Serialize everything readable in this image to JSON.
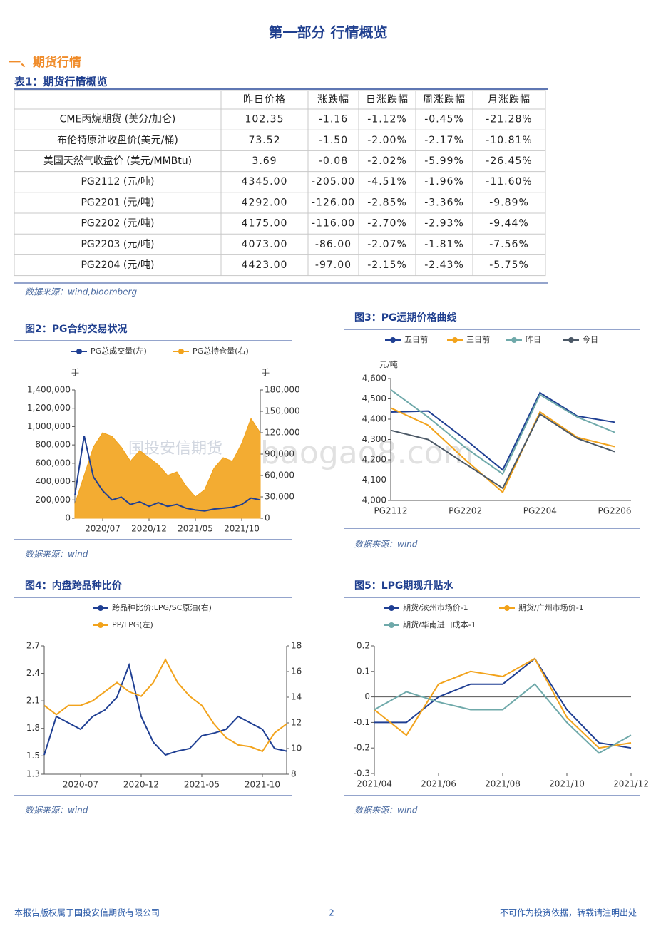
{
  "header": {
    "title": "第一部分 行情概览"
  },
  "section": "一、期货行情",
  "table": {
    "caption": "表1：期货行情概览",
    "columns": [
      "昨日价格",
      "涨跌幅",
      "日涨跌幅",
      "周涨跌幅",
      "月涨跌幅"
    ],
    "rows": [
      [
        "CME丙烷期货 (美分/加仑)",
        "102.35",
        "-1.16",
        "-1.12%",
        "-0.45%",
        "-21.28%"
      ],
      [
        "布伦特原油收盘价(美元/桶)",
        "73.52",
        "-1.50",
        "-2.00%",
        "-2.17%",
        "-10.81%"
      ],
      [
        "美国天然气收盘价 (美元/MMBtu)",
        "3.69",
        "-0.08",
        "-2.02%",
        "-5.99%",
        "-26.45%"
      ],
      [
        "PG2112 (元/吨)",
        "4345.00",
        "-205.00",
        "-4.51%",
        "-1.96%",
        "-11.60%"
      ],
      [
        "PG2201 (元/吨)",
        "4292.00",
        "-126.00",
        "-2.85%",
        "-3.36%",
        "-9.89%"
      ],
      [
        "PG2202 (元/吨)",
        "4175.00",
        "-116.00",
        "-2.70%",
        "-2.93%",
        "-9.44%"
      ],
      [
        "PG2203 (元/吨)",
        "4073.00",
        "-86.00",
        "-2.07%",
        "-1.81%",
        "-7.56%"
      ],
      [
        "PG2204 (元/吨)",
        "4423.00",
        "-97.00",
        "-2.15%",
        "-2.43%",
        "-5.75%"
      ]
    ],
    "source": "数据来源：wind,bloomberg"
  },
  "chart_data": [
    {
      "type": "line",
      "title": "图2：PG合约交易状况",
      "source": "数据来源：wind",
      "y_unit": "手",
      "y2_unit": "手",
      "x": [
        "2020/04",
        "2020/05",
        "2020/06",
        "2020/07",
        "2020/08",
        "2020/09",
        "2020/10",
        "2020/11",
        "2020/12",
        "2021/01",
        "2021/02",
        "2021/03",
        "2021/04",
        "2021/05",
        "2021/06",
        "2021/07",
        "2021/08",
        "2021/09",
        "2021/10",
        "2021/11",
        "2021/12"
      ],
      "xticks": [
        "2020/07",
        "2020/12",
        "2021/05",
        "2021/10"
      ],
      "ylim": [
        0,
        1400000
      ],
      "yticks": [
        0,
        {
          "value": 200000,
          "label": "200,000"
        },
        {
          "value": 400000,
          "label": "400,000"
        },
        {
          "value": 600000,
          "label": "600,000"
        },
        {
          "value": 800000,
          "label": "800,000"
        },
        {
          "value": 1000000,
          "label": "1,000,000"
        },
        {
          "value": 1200000,
          "label": "1,200,000"
        },
        {
          "value": 1400000,
          "label": "1,400,000"
        }
      ],
      "y2lim": [
        0,
        180000
      ],
      "y2ticks": [
        0,
        {
          "value": 30000,
          "label": "30,000"
        },
        {
          "value": 60000,
          "label": "60,000"
        },
        {
          "value": 90000,
          "label": "90,000"
        },
        {
          "value": 120000,
          "label": "120,000"
        },
        {
          "value": 150000,
          "label": "150,000"
        },
        {
          "value": 180000,
          "label": "180,000"
        }
      ],
      "series": [
        {
          "name": "PG总持仓量(右)",
          "color": "#f2a31c",
          "axis": "y2",
          "area": true,
          "values": [
            20000,
            60000,
            100000,
            120000,
            115000,
            100000,
            80000,
            95000,
            85000,
            75000,
            60000,
            65000,
            45000,
            30000,
            40000,
            70000,
            85000,
            80000,
            105000,
            140000,
            120000
          ]
        },
        {
          "name": "PG总成交量(左)",
          "color": "#1f3f93",
          "values": [
            250000,
            900000,
            450000,
            300000,
            200000,
            230000,
            150000,
            180000,
            130000,
            170000,
            130000,
            150000,
            110000,
            90000,
            80000,
            100000,
            110000,
            120000,
            150000,
            220000,
            200000
          ]
        }
      ]
    },
    {
      "type": "line",
      "title": "图3：PG远期价格曲线",
      "source": "数据来源：wind",
      "y_unit": "元/吨",
      "categories": [
        "PG2112",
        null,
        "PG2202",
        null,
        "PG2204",
        null,
        "PG2206"
      ],
      "ylim": [
        4000,
        4600
      ],
      "yticks": [
        {
          "value": 4000,
          "label": "4,000"
        },
        {
          "value": 4100,
          "label": "4,100"
        },
        {
          "value": 4200,
          "label": "4,200"
        },
        {
          "value": 4300,
          "label": "4,300"
        },
        {
          "value": 4400,
          "label": "4,400"
        },
        {
          "value": 4500,
          "label": "4,500"
        },
        {
          "value": 4600,
          "label": "4,600"
        }
      ],
      "series": [
        {
          "name": "五日前",
          "color": "#1f3f93",
          "values": [
            4435,
            4440,
            4300,
            4150,
            4530,
            4415,
            4385
          ]
        },
        {
          "name": "三日前",
          "color": "#f2a31c",
          "values": [
            4455,
            4370,
            4200,
            4040,
            4435,
            4310,
            4265
          ]
        },
        {
          "name": "昨日",
          "color": "#6fa9aa",
          "values": [
            4545,
            4410,
            4260,
            4130,
            4520,
            4410,
            4335
          ]
        },
        {
          "name": "今日",
          "color": "#4b5866",
          "values": [
            4345,
            4300,
            4180,
            4060,
            4425,
            4305,
            4240
          ]
        }
      ]
    },
    {
      "type": "line",
      "title": "图4：内盘跨品种比价",
      "source": "数据来源：wind",
      "x": [
        "2020-04",
        "2020-05",
        "2020-06",
        "2020-07",
        "2020-08",
        "2020-09",
        "2020-10",
        "2020-11",
        "2020-12",
        "2021-01",
        "2021-02",
        "2021-03",
        "2021-04",
        "2021-05",
        "2021-06",
        "2021-07",
        "2021-08",
        "2021-09",
        "2021-10",
        "2021-11",
        "2021-12"
      ],
      "xticks": [
        "2020-07",
        "2020-12",
        "2021-05",
        "2021-10"
      ],
      "ylim": [
        1.3,
        2.7
      ],
      "yticks": [
        1.3,
        1.5,
        1.8,
        2.1,
        2.4,
        2.7
      ],
      "y2lim": [
        8,
        18
      ],
      "y2ticks": [
        8,
        10,
        12,
        14,
        16,
        18
      ],
      "series": [
        {
          "name": "跨品种比价:LPG/SC原油(右)",
          "color": "#1f3f93",
          "axis": "y2",
          "values": [
            9.5,
            12.5,
            12,
            11.5,
            12.5,
            13,
            14,
            16.5,
            12.5,
            10.5,
            9.5,
            9.8,
            10,
            11,
            11.2,
            11.5,
            12.5,
            12,
            11.5,
            10,
            9.8
          ]
        },
        {
          "name": "PP/LPG(左)",
          "color": "#f2a31c",
          "values": [
            2.05,
            1.95,
            2.05,
            2.05,
            2.1,
            2.2,
            2.3,
            2.2,
            2.15,
            2.3,
            2.55,
            2.3,
            2.15,
            2.05,
            1.85,
            1.7,
            1.62,
            1.6,
            1.55,
            1.75,
            1.85
          ]
        }
      ]
    },
    {
      "type": "line",
      "title": "图5：LPG期现升贴水",
      "source": "数据来源：wind",
      "x": [
        "2021/04",
        "2021/05",
        "2021/06",
        "2021/07",
        "2021/08",
        "2021/09",
        "2021/10",
        "2021/11",
        "2021/12"
      ],
      "xticks": [
        "2021/04",
        "2021/06",
        "2021/08",
        "2021/10",
        "2021/12"
      ],
      "ylim": [
        -0.3,
        0.2
      ],
      "yticks": [
        -0.3,
        -0.2,
        -0.1,
        0,
        0.1,
        0.2
      ],
      "series": [
        {
          "name": "期货/滨州市场价-1",
          "color": "#1f3f93",
          "values": [
            -0.1,
            -0.1,
            0,
            0.05,
            0.05,
            0.15,
            -0.05,
            -0.18,
            -0.2
          ]
        },
        {
          "name": "期货/广州市场价-1",
          "color": "#f2a31c",
          "values": [
            -0.05,
            -0.15,
            0.05,
            0.1,
            0.08,
            0.15,
            -0.08,
            -0.2,
            -0.18
          ]
        },
        {
          "name": "期货/华南进口成本-1",
          "color": "#6fa9aa",
          "values": [
            -0.05,
            0.02,
            -0.02,
            -0.05,
            -0.05,
            0.05,
            -0.1,
            -0.22,
            -0.15
          ]
        }
      ]
    }
  ],
  "watermark": [
    "国投安信期货",
    "baogao8.com"
  ],
  "footer": {
    "left": "本报告版权属于国投安信期货有限公司",
    "page": "2",
    "right": "不可作为投资依据，转载请注明出处"
  }
}
